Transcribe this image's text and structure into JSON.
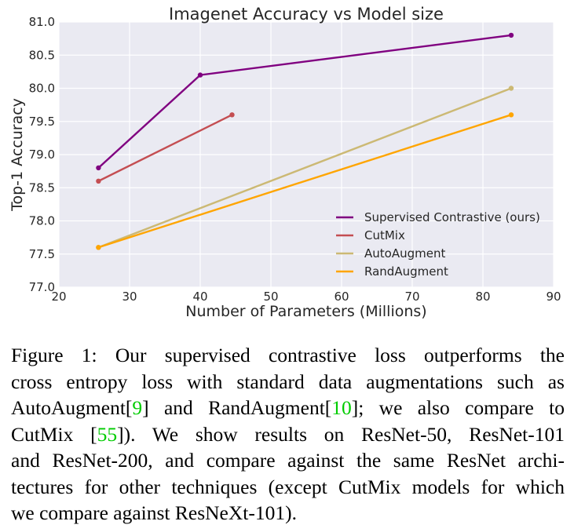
{
  "chart_data": {
    "type": "line",
    "title": "Imagenet Accuracy vs Model size",
    "xlabel": "Number of Parameters (Millions)",
    "ylabel": "Top-1 Accuracy",
    "xlim": [
      20,
      90
    ],
    "ylim": [
      77.0,
      81.0
    ],
    "xticks": [
      "20",
      "30",
      "40",
      "50",
      "60",
      "70",
      "80",
      "90"
    ],
    "yticks": [
      "77.0",
      "77.5",
      "78.0",
      "78.5",
      "79.0",
      "79.5",
      "80.0",
      "80.5",
      "81.0"
    ],
    "grid": true,
    "legend_position": "lower-right",
    "series": [
      {
        "name": "Supervised Contrastive (ours)",
        "color": "#800080",
        "x": [
          25.6,
          40,
          84
        ],
        "y": [
          78.8,
          80.2,
          80.8
        ]
      },
      {
        "name": "CutMix",
        "color": "#c44e52",
        "x": [
          25.6,
          44.5
        ],
        "y": [
          78.6,
          79.6
        ]
      },
      {
        "name": "AutoAugment",
        "color": "#ccb974",
        "x": [
          25.6,
          84
        ],
        "y": [
          77.6,
          80.0
        ]
      },
      {
        "name": "RandAugment",
        "color": "#ffa500",
        "x": [
          25.6,
          84
        ],
        "y": [
          77.6,
          79.6
        ]
      }
    ]
  },
  "caption": {
    "lines": [
      [
        "Figure 1:  Our supervised contrastive loss outperforms the"
      ],
      [
        "cross entropy loss with standard data augmentations such as"
      ],
      [
        "AutoAugment[",
        {
          "cite": "9"
        },
        "] and RandAugment[",
        {
          "cite": "10"
        },
        "]; we also compare to"
      ],
      [
        "CutMix [",
        {
          "cite": "55"
        },
        "]).  We show results on ResNet-50, ResNet-101"
      ],
      [
        "and ResNet-200, and compare against the same ResNet archi-"
      ],
      [
        "tectures for other techniques (except CutMix models for which"
      ],
      [
        "we compare against ResNeXt-101)."
      ]
    ]
  }
}
